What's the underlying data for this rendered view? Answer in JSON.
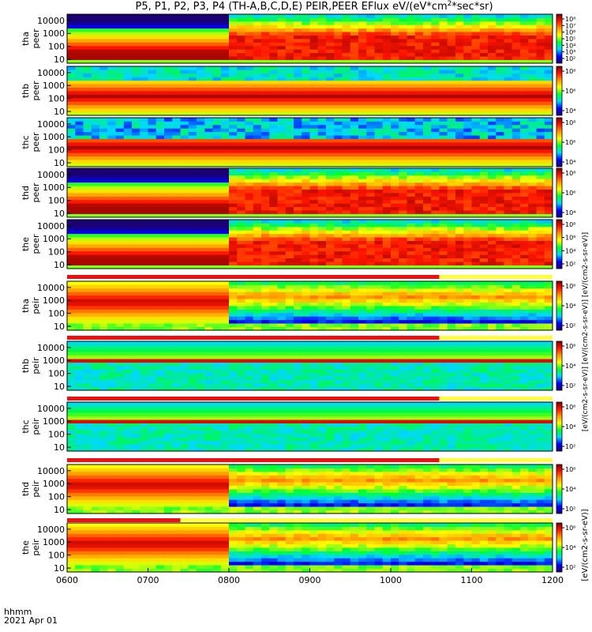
{
  "figure": {
    "title": "P5, P1, P2, P3, P4 (TH-A,B,C,D,E) PEIR,PEER EFlux eV/(eV*cm",
    "title_sup": "2",
    "title_tail": "*sec*sr)",
    "xaxis_label_line1": "hhmm",
    "xaxis_label_line2": "2021 Apr 01",
    "colorbar_unit_full": "[eV/(cm2-s-sr-eV)]",
    "colorbar_unit_stacked": "[eV/(cm2-s-sr-eV)] [eV/(cm2-s-sr-eV)] [eV/(cm2-s-sr-eV)]"
  },
  "chart_data": {
    "type": "heatmap",
    "x_ticks": [
      "0600",
      "0700",
      "0800",
      "0900",
      "1000",
      "1100",
      "1200"
    ],
    "y_scale": "log",
    "y_ticks": [
      "10",
      "100",
      "1000",
      "10000"
    ],
    "y_range": [
      5,
      30000
    ],
    "colorscale": [
      "#1a0070",
      "#0000ff",
      "#00d8ff",
      "#00ff30",
      "#ffff00",
      "#ff9a00",
      "#ff1400",
      "#7a0000"
    ],
    "panels": [
      {
        "probe": "tha",
        "species": "peer",
        "cbar_ticks": [
          "10²",
          "10³",
          "10⁴",
          "10⁵",
          "10⁶",
          "10⁷",
          "10⁸"
        ]
      },
      {
        "probe": "thb",
        "species": "peer",
        "cbar_ticks": [
          "10⁴",
          "10⁶",
          "10⁸"
        ]
      },
      {
        "probe": "thc",
        "species": "peer",
        "cbar_ticks": [
          "10⁴",
          "10⁶",
          "10⁸"
        ]
      },
      {
        "probe": "thd",
        "species": "peer",
        "cbar_ticks": [
          "10⁴",
          "10⁶",
          "10⁸"
        ]
      },
      {
        "probe": "the",
        "species": "peer",
        "cbar_ticks": [
          "10²",
          "10⁴",
          "10⁶",
          "10⁸"
        ]
      },
      {
        "probe": "tha",
        "species": "peir",
        "cbar_ticks": [
          "10²",
          "10⁴",
          "10⁶"
        ]
      },
      {
        "probe": "thb",
        "species": "peir",
        "cbar_ticks": [
          "10²",
          "10⁴",
          "10⁶"
        ]
      },
      {
        "probe": "thc",
        "species": "peir",
        "cbar_ticks": [
          "10²",
          "10⁴",
          "10⁶"
        ]
      },
      {
        "probe": "thd",
        "species": "peir",
        "cbar_ticks": [
          "10²",
          "10⁴",
          "10⁶"
        ]
      },
      {
        "probe": "the",
        "species": "peir",
        "cbar_ticks": [
          "10²",
          "10⁴",
          "10⁶"
        ]
      }
    ]
  }
}
